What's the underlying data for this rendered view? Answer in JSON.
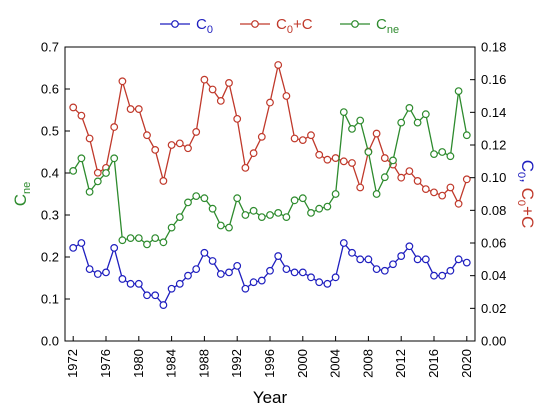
{
  "chart_data": {
    "type": "line",
    "x": [
      1972,
      1973,
      1974,
      1975,
      1976,
      1977,
      1978,
      1979,
      1980,
      1981,
      1982,
      1983,
      1984,
      1985,
      1986,
      1987,
      1988,
      1989,
      1990,
      1991,
      1992,
      1993,
      1994,
      1995,
      1996,
      1997,
      1998,
      1999,
      2000,
      2001,
      2002,
      2003,
      2004,
      2005,
      2006,
      2007,
      2008,
      2009,
      2010,
      2011,
      2012,
      2013,
      2014,
      2015,
      2016,
      2017,
      2018,
      2019,
      2020
    ],
    "xlabel": "Year",
    "xlim": [
      1971,
      2021
    ],
    "x_ticks": [
      "1972",
      "1976",
      "1980",
      "1984",
      "1988",
      "1992",
      "1996",
      "2000",
      "2004",
      "2008",
      "2012",
      "2016",
      "2020"
    ],
    "x_tick_values": [
      1972,
      1976,
      1980,
      1984,
      1988,
      1992,
      1996,
      2000,
      2004,
      2008,
      2012,
      2016,
      2020
    ],
    "y_left": {
      "label_main": "C",
      "label_sub": "ne",
      "ylim": [
        0,
        0.7
      ],
      "ticks": [
        "0.0",
        "0.1",
        "0.2",
        "0.3",
        "0.4",
        "0.5",
        "0.6",
        "0.7"
      ],
      "tick_values": [
        0,
        0.1,
        0.2,
        0.3,
        0.4,
        0.5,
        0.6,
        0.7
      ],
      "color": "#2e8b2e"
    },
    "y_right": {
      "label_c0": "C",
      "label_c0_sub": "0",
      "label_sep": ", ",
      "label_c0c": "C",
      "label_c0c_sub": "0",
      "label_c0c_tail": "+C",
      "label_c0_color": "#1f1fbf",
      "label_c0c_color": "#c0392b",
      "ylim": [
        0,
        0.18
      ],
      "ticks": [
        "0.00",
        "0.02",
        "0.04",
        "0.06",
        "0.08",
        "0.10",
        "0.12",
        "0.14",
        "0.16",
        "0.18"
      ],
      "tick_values": [
        0,
        0.02,
        0.04,
        0.06,
        0.08,
        0.1,
        0.12,
        0.14,
        0.16,
        0.18
      ]
    },
    "series": [
      {
        "key": "c0",
        "name_main": "C",
        "name_sub": "0",
        "name_tail": "",
        "axis": "right",
        "color": "#1f1fbf",
        "values": [
          0.057,
          0.06,
          0.044,
          0.041,
          0.042,
          0.057,
          0.038,
          0.035,
          0.035,
          0.028,
          0.028,
          0.022,
          0.032,
          0.035,
          0.04,
          0.044,
          0.054,
          0.049,
          0.041,
          0.042,
          0.046,
          0.032,
          0.036,
          0.037,
          0.043,
          0.052,
          0.044,
          0.042,
          0.042,
          0.039,
          0.036,
          0.035,
          0.039,
          0.06,
          0.054,
          0.05,
          0.05,
          0.044,
          0.043,
          0.047,
          0.052,
          0.058,
          0.05,
          0.05,
          0.04,
          0.04,
          0.043,
          0.05,
          0.048
        ]
      },
      {
        "key": "c0c",
        "name_main": "C",
        "name_sub": "0",
        "name_tail": "+C",
        "axis": "right",
        "color": "#c0392b",
        "values": [
          0.143,
          0.138,
          0.124,
          0.103,
          0.106,
          0.131,
          0.159,
          0.142,
          0.142,
          0.126,
          0.117,
          0.098,
          0.12,
          0.121,
          0.118,
          0.128,
          0.16,
          0.154,
          0.147,
          0.158,
          0.136,
          0.106,
          0.115,
          0.125,
          0.146,
          0.169,
          0.15,
          0.124,
          0.123,
          0.126,
          0.114,
          0.111,
          0.112,
          0.11,
          0.109,
          0.094,
          0.116,
          0.127,
          0.112,
          0.108,
          0.1,
          0.104,
          0.098,
          0.093,
          0.091,
          0.089,
          0.094,
          0.084,
          0.099
        ]
      },
      {
        "key": "cne",
        "name_main": "C",
        "name_sub": "ne",
        "name_tail": "",
        "axis": "left",
        "color": "#2e8b2e",
        "values": [
          0.405,
          0.435,
          0.355,
          0.38,
          0.4,
          0.435,
          0.24,
          0.245,
          0.245,
          0.23,
          0.245,
          0.235,
          0.27,
          0.295,
          0.33,
          0.345,
          0.34,
          0.315,
          0.275,
          0.27,
          0.34,
          0.3,
          0.31,
          0.295,
          0.3,
          0.305,
          0.295,
          0.335,
          0.34,
          0.305,
          0.315,
          0.32,
          0.35,
          0.545,
          0.505,
          0.525,
          0.45,
          0.35,
          0.39,
          0.43,
          0.52,
          0.555,
          0.52,
          0.54,
          0.445,
          0.45,
          0.44,
          0.595,
          0.49
        ]
      }
    ],
    "legend": "top-center",
    "grid": false
  }
}
